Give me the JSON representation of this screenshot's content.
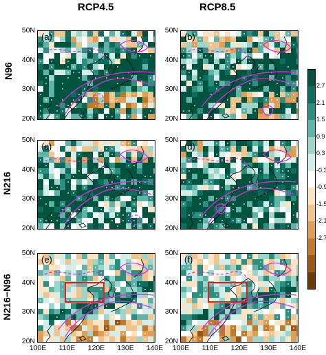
{
  "column_titles": [
    "RCP4.5",
    "RCP8.5"
  ],
  "row_titles": [
    "N96",
    "N216",
    "N216−N96"
  ],
  "panels": [
    {
      "label": "(a)",
      "row": 0,
      "col": 0,
      "seed": 11,
      "box": false
    },
    {
      "label": "(b)",
      "row": 0,
      "col": 1,
      "seed": 23,
      "box": false
    },
    {
      "label": "(c)",
      "row": 1,
      "col": 0,
      "seed": 37,
      "box": false
    },
    {
      "label": "(d)",
      "row": 1,
      "col": 1,
      "seed": 41,
      "box": false
    },
    {
      "label": "(e)",
      "row": 2,
      "col": 0,
      "seed": 53,
      "box": true
    },
    {
      "label": "(f)",
      "row": 2,
      "col": 1,
      "seed": 67,
      "box": true
    }
  ],
  "lat_ticks": [
    "50N",
    "40N",
    "30N",
    "20N"
  ],
  "lon_ticks": [
    "100E",
    "110E",
    "120E",
    "130E",
    "140E"
  ],
  "colorbar": {
    "labels": [
      "2.7",
      "2.1",
      "1.5",
      "0.9",
      "0.3",
      "-0.3",
      "-0.9",
      "-1.5",
      "-2.1",
      "-2.7"
    ],
    "colors": [
      "#00533f",
      "#0b6d5e",
      "#2c8f80",
      "#5fb4a7",
      "#9bd5cc",
      "#d4eeea",
      "#ffffff",
      "#fbe3c4",
      "#f1c48e",
      "#dfa055",
      "#c07a2c",
      "#9a5716",
      "#6b3a09"
    ]
  },
  "contour_color": "#e02ce0",
  "box_color": "#e02020"
}
